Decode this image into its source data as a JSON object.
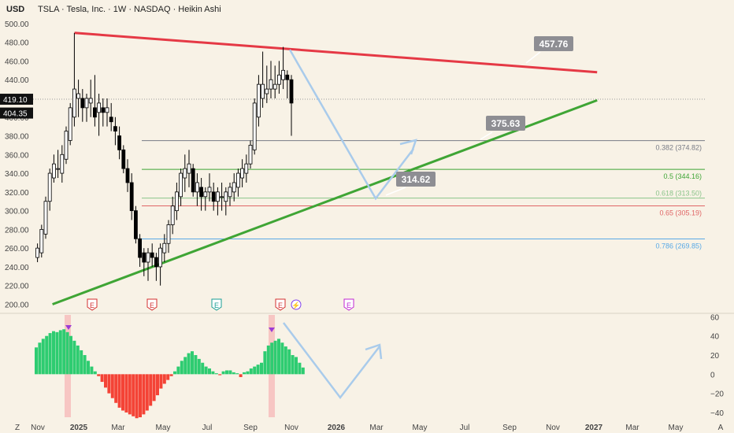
{
  "header": {
    "currency": "USD",
    "title": "TSLA · Tesla, Inc. · 1W · NASDAQ · Heikin Ashi"
  },
  "chart_data": {
    "type": "candlestick",
    "main_panel": {
      "y_ticks": [
        200,
        220,
        240,
        260,
        280,
        300,
        320,
        340,
        360,
        380,
        400,
        420,
        440,
        460,
        480,
        500
      ],
      "y_tick_labels": [
        "200.00",
        "220.00",
        "240.00",
        "260.00",
        "280.00",
        "300.00",
        "320.00",
        "340.00",
        "360.00",
        "380.00",
        "400.00",
        "420.00",
        "440.00",
        "460.00",
        "480.00",
        "500.00"
      ],
      "ylim": [
        192,
        510
      ],
      "price_labels": [
        {
          "value": 419.1,
          "text": "419.10"
        },
        {
          "value": 404.35,
          "text": "404.35"
        }
      ],
      "candles_ohlc": [
        [
          250,
          265,
          245,
          260
        ],
        [
          255,
          285,
          250,
          280
        ],
        [
          275,
          315,
          270,
          310
        ],
        [
          310,
          345,
          300,
          340
        ],
        [
          335,
          360,
          330,
          350
        ],
        [
          345,
          365,
          335,
          345
        ],
        [
          340,
          370,
          330,
          360
        ],
        [
          355,
          390,
          350,
          385
        ],
        [
          375,
          415,
          370,
          410
        ],
        [
          400,
          490,
          390,
          430
        ],
        [
          420,
          440,
          400,
          425
        ],
        [
          420,
          430,
          395,
          410
        ],
        [
          410,
          425,
          395,
          420
        ],
        [
          415,
          440,
          400,
          420
        ],
        [
          410,
          445,
          390,
          400
        ],
        [
          405,
          425,
          380,
          415
        ],
        [
          410,
          420,
          390,
          405
        ],
        [
          405,
          420,
          390,
          410
        ],
        [
          400,
          415,
          385,
          395
        ],
        [
          390,
          400,
          370,
          385
        ],
        [
          380,
          390,
          355,
          365
        ],
        [
          365,
          370,
          340,
          345
        ],
        [
          345,
          355,
          320,
          330
        ],
        [
          330,
          340,
          290,
          300
        ],
        [
          300,
          305,
          265,
          270
        ],
        [
          270,
          275,
          240,
          250
        ],
        [
          255,
          260,
          230,
          245
        ],
        [
          245,
          260,
          225,
          255
        ],
        [
          255,
          265,
          240,
          250
        ],
        [
          250,
          255,
          225,
          240
        ],
        [
          240,
          265,
          220,
          260
        ],
        [
          255,
          275,
          245,
          265
        ],
        [
          265,
          290,
          255,
          285
        ],
        [
          285,
          315,
          275,
          305
        ],
        [
          300,
          330,
          290,
          320
        ],
        [
          315,
          345,
          305,
          340
        ],
        [
          335,
          360,
          320,
          345
        ],
        [
          340,
          365,
          325,
          350
        ],
        [
          345,
          350,
          315,
          320
        ],
        [
          320,
          340,
          305,
          330
        ],
        [
          325,
          335,
          300,
          315
        ],
        [
          315,
          325,
          300,
          320
        ],
        [
          320,
          340,
          310,
          325
        ],
        [
          320,
          330,
          300,
          310
        ],
        [
          310,
          325,
          295,
          320
        ],
        [
          315,
          330,
          300,
          315
        ],
        [
          310,
          325,
          295,
          320
        ],
        [
          315,
          330,
          305,
          325
        ],
        [
          320,
          340,
          310,
          330
        ],
        [
          325,
          345,
          315,
          340
        ],
        [
          335,
          355,
          325,
          345
        ],
        [
          340,
          360,
          330,
          350
        ],
        [
          350,
          375,
          345,
          370
        ],
        [
          365,
          420,
          360,
          415
        ],
        [
          400,
          445,
          390,
          435
        ],
        [
          420,
          470,
          410,
          435
        ],
        [
          425,
          455,
          415,
          430
        ],
        [
          430,
          460,
          420,
          440
        ],
        [
          430,
          455,
          420,
          435
        ],
        [
          435,
          460,
          425,
          445
        ],
        [
          440,
          475,
          430,
          450
        ],
        [
          445,
          450,
          420,
          440
        ],
        [
          440,
          445,
          380,
          415
        ]
      ],
      "trendlines": [
        {
          "name": "resistance",
          "color": "#e53945",
          "from": [
            "2024-11-25",
            490
          ],
          "to": [
            "2026-12-01",
            448
          ]
        },
        {
          "name": "support",
          "color": "#3fa535",
          "from": [
            "2024-10-25",
            200
          ],
          "to": [
            "2026-12-01",
            418
          ]
        }
      ],
      "fib_levels": [
        {
          "ratio": 0.382,
          "value": 374.82,
          "label": "0.382 (374.82)",
          "color": "#787b86"
        },
        {
          "ratio": 0.5,
          "value": 344.16,
          "label": "0.5 (344.16)",
          "color": "#3fa535"
        },
        {
          "ratio": 0.618,
          "value": 313.5,
          "label": "0.618 (313.50)",
          "color": "#8bc48a"
        },
        {
          "ratio": 0.65,
          "value": 305.19,
          "label": "0.65 (305.19)",
          "color": "#e06666"
        },
        {
          "ratio": 0.786,
          "value": 269.85,
          "label": "0.786 (269.85)",
          "color": "#5aa9e6"
        }
      ],
      "annotations": [
        {
          "text": "457.76",
          "value": 457.76
        },
        {
          "text": "375.63",
          "value": 375.63
        },
        {
          "text": "314.62",
          "value": 314.62
        }
      ],
      "projection_path": [
        [
          475,
          470
        ],
        [
          505,
          314
        ],
        [
          525,
          370
        ]
      ],
      "event_markers": [
        "E",
        "E",
        "E",
        "E",
        "E"
      ]
    },
    "oscillator_panel": {
      "y_ticks": [
        -40,
        -20,
        0,
        20,
        40,
        60
      ],
      "y_tick_labels": [
        "−40",
        "−20",
        "0",
        "20",
        "40",
        "60"
      ],
      "ylim": [
        -45,
        62
      ],
      "histogram": [
        28,
        33,
        37,
        40,
        43,
        45,
        44,
        46,
        47,
        44,
        40,
        35,
        30,
        25,
        20,
        14,
        8,
        3,
        -2,
        -8,
        -14,
        -20,
        -25,
        -30,
        -35,
        -38,
        -40,
        -42,
        -44,
        -46,
        -45,
        -42,
        -38,
        -33,
        -28,
        -22,
        -15,
        -10,
        -6,
        -2,
        3,
        8,
        14,
        18,
        22,
        24,
        20,
        16,
        12,
        8,
        6,
        3,
        1,
        -1,
        3,
        4,
        4,
        2,
        1,
        -3,
        2,
        3,
        6,
        8,
        10,
        12,
        24,
        30,
        33,
        35,
        37,
        33,
        29,
        26,
        20,
        18,
        12,
        7
      ]
    },
    "x_ticks": [
      "Z",
      "Nov",
      "2025",
      "Mar",
      "May",
      "Jul",
      "Sep",
      "Nov",
      "2026",
      "Mar",
      "May",
      "Jul",
      "Sep",
      "Nov",
      "2027",
      "Mar",
      "May",
      "A"
    ]
  },
  "colors": {
    "background": "#f8f2e6",
    "bull": "#ffffff",
    "bear": "#000000",
    "hist_pos": "#2ecc71",
    "hist_neg": "#f44336",
    "projection": "#a9cbeb",
    "label_bg": "#8e8e93"
  }
}
